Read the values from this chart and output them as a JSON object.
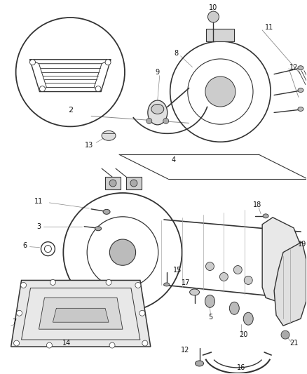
{
  "background_color": "#ffffff",
  "line_color": "#555555",
  "dark": "#333333",
  "gray": "#888888",
  "light_gray": "#cccccc",
  "fig_width": 4.38,
  "fig_height": 5.33,
  "dpi": 100
}
